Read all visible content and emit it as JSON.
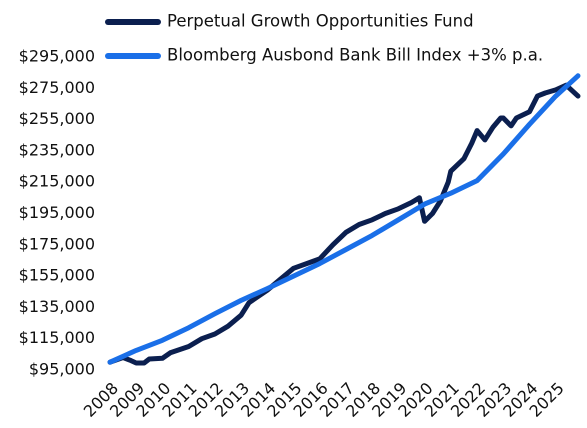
{
  "chart_data": {
    "type": "line",
    "legend": "top",
    "xlim": [
      2008,
      2025.85
    ],
    "xticks": [
      2008,
      2009,
      2010,
      2011,
      2012,
      2013,
      2014,
      2015,
      2016,
      2017,
      2018,
      2019,
      2020,
      2021,
      2022,
      2023,
      2024,
      2025
    ],
    "ylim": [
      95000,
      295000
    ],
    "yticks": [
      {
        "value": 95000,
        "label": "$95,000"
      },
      {
        "value": 115000,
        "label": "$115,000"
      },
      {
        "value": 135000,
        "label": "$135,000"
      },
      {
        "value": 155000,
        "label": "$155,000"
      },
      {
        "value": 175000,
        "label": "$175,000"
      },
      {
        "value": 195000,
        "label": "$195,000"
      },
      {
        "value": 215000,
        "label": "$215,000"
      },
      {
        "value": 235000,
        "label": "$235,000"
      },
      {
        "value": 255000,
        "label": "$255,000"
      },
      {
        "value": 275000,
        "label": "$275,000"
      },
      {
        "value": 295000,
        "label": "$295,000"
      }
    ],
    "series": [
      {
        "name": "Perpetual Growth Opportunities Fund",
        "color": "#0b1f4f",
        "x": [
          2008,
          2008.5,
          2008.8,
          2009,
          2009.3,
          2009.5,
          2010,
          2010.3,
          2011,
          2011.5,
          2012,
          2012.5,
          2013,
          2013.3,
          2014,
          2014.5,
          2015,
          2015.5,
          2016,
          2016.5,
          2017,
          2017.5,
          2018,
          2018.5,
          2019,
          2019.5,
          2019.8,
          2020,
          2020.3,
          2020.6,
          2020.9,
          2021,
          2021.5,
          2021.8,
          2022,
          2022.3,
          2022.6,
          2022.9,
          2023,
          2023.3,
          2023.5,
          2024,
          2024.3,
          2024.6,
          2025,
          2025.4,
          2025.85
        ],
        "values": [
          100000,
          103000,
          101000,
          99500,
          99500,
          102000,
          102500,
          106000,
          110000,
          115000,
          118000,
          123000,
          130000,
          138000,
          146000,
          153000,
          160000,
          163000,
          166000,
          175000,
          183000,
          188000,
          191000,
          195000,
          198000,
          202000,
          205000,
          190000,
          195000,
          203000,
          215000,
          222000,
          230000,
          240000,
          248000,
          242000,
          250000,
          256000,
          256000,
          251000,
          256000,
          260000,
          270000,
          272000,
          274000,
          277000,
          270000
        ]
      },
      {
        "name": "Bloomberg Ausbond Bank Bill Index +3% p.a.",
        "color": "#1a6fe8",
        "x": [
          2008,
          2009,
          2010,
          2011,
          2012,
          2013,
          2014,
          2015,
          2016,
          2017,
          2018,
          2019,
          2020,
          2021,
          2022,
          2023,
          2024,
          2025,
          2025.85
        ],
        "values": [
          100000,
          107500,
          114000,
          122000,
          131000,
          139500,
          147000,
          155000,
          163000,
          172000,
          181000,
          191000,
          201000,
          208000,
          216000,
          233000,
          252000,
          270000,
          283000
        ]
      }
    ]
  }
}
